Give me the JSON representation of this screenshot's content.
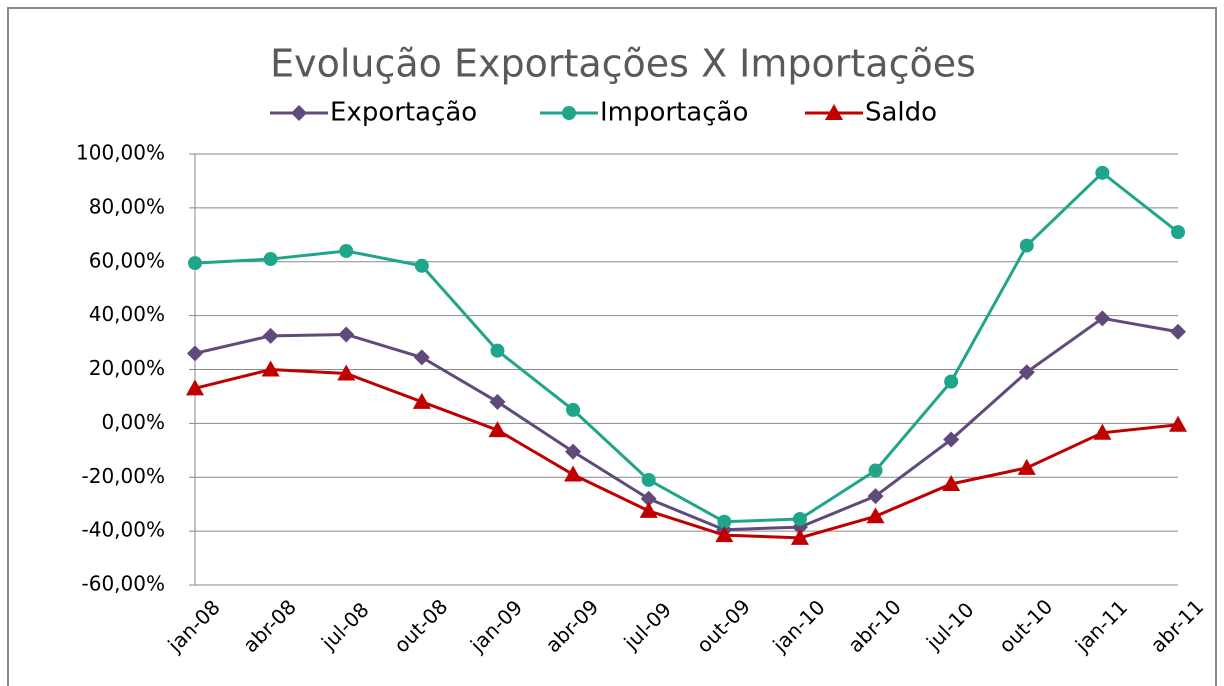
{
  "chart_data": {
    "type": "line",
    "title": "Evolução Exportações X Importações",
    "categories": [
      "jan-08",
      "abr-08",
      "jul-08",
      "out-08",
      "jan-09",
      "abr-09",
      "jul-09",
      "out-09",
      "jan-10",
      "abr-10",
      "jul-10",
      "out-10",
      "jan-11",
      "abr-11"
    ],
    "series": [
      {
        "name": "Exportação",
        "color": "#604a7b",
        "marker": "diamond",
        "values": [
          26,
          32.5,
          33,
          24.5,
          8,
          -10.5,
          -28,
          -39.5,
          -38.5,
          -27,
          -6,
          19,
          39,
          34
        ]
      },
      {
        "name": "Importação",
        "color": "#1fa58a",
        "marker": "circle",
        "values": [
          59.5,
          61,
          64,
          58.5,
          27,
          5,
          -21,
          -36.5,
          -35.5,
          -17.5,
          15.5,
          66,
          93,
          71
        ]
      },
      {
        "name": "Saldo",
        "color": "#c00000",
        "marker": "triangle",
        "values": [
          13,
          20,
          18.5,
          8,
          -2.5,
          -19,
          -32.5,
          -41.5,
          -42.5,
          -34.5,
          -22.5,
          -16.5,
          -3.5,
          -0.5
        ]
      }
    ],
    "ylim": [
      -60,
      100
    ],
    "yticks": [
      {
        "value": -60,
        "label": "-60,00%"
      },
      {
        "value": -40,
        "label": "-40,00%"
      },
      {
        "value": -20,
        "label": "-20,00%"
      },
      {
        "value": 0,
        "label": "0,00%"
      },
      {
        "value": 20,
        "label": "20,00%"
      },
      {
        "value": 40,
        "label": "40,00%"
      },
      {
        "value": 60,
        "label": "60,00%"
      },
      {
        "value": 80,
        "label": "80,00%"
      },
      {
        "value": 100,
        "label": "100,00%"
      }
    ],
    "grid": true,
    "legend": "top"
  }
}
